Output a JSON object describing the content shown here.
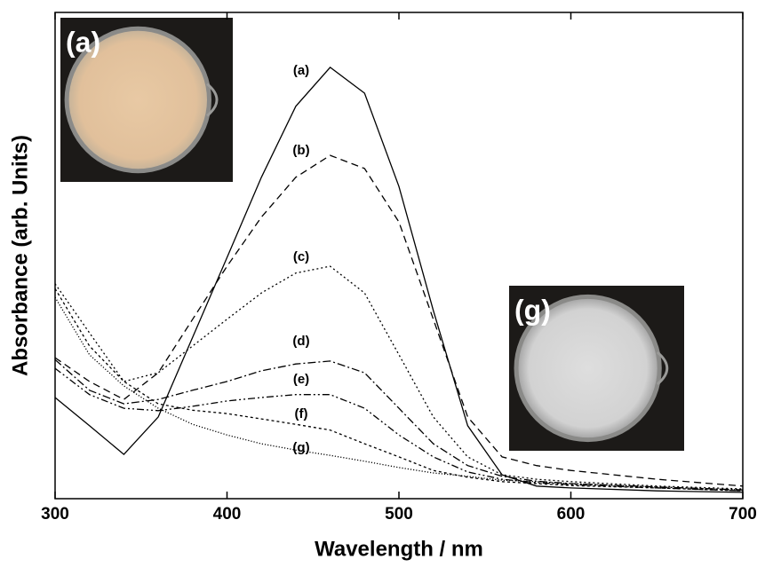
{
  "chart_data": {
    "type": "line",
    "xlabel": "Wavelength / nm",
    "ylabel": "Absorbance (arb. Units)",
    "xlim": [
      300,
      700
    ],
    "xticks": [
      300,
      400,
      500,
      600,
      700
    ],
    "ylim": [
      0,
      1
    ],
    "x": [
      300,
      320,
      340,
      360,
      380,
      400,
      420,
      440,
      460,
      480,
      500,
      520,
      540,
      560,
      580,
      600,
      650,
      700
    ],
    "series": [
      {
        "name": "(a)",
        "color": "#000000",
        "dash": "solid",
        "values": [
          0.208,
          0.15,
          0.091,
          0.168,
          0.332,
          0.496,
          0.661,
          0.807,
          0.887,
          0.834,
          0.642,
          0.387,
          0.15,
          0.049,
          0.026,
          0.022,
          0.016,
          0.013
        ]
      },
      {
        "name": "(b)",
        "color": "#000000",
        "dash": "dashed",
        "values": [
          0.29,
          0.241,
          0.204,
          0.259,
          0.369,
          0.478,
          0.579,
          0.661,
          0.706,
          0.679,
          0.569,
          0.369,
          0.168,
          0.086,
          0.068,
          0.058,
          0.04,
          0.026
        ]
      },
      {
        "name": "(c)",
        "color": "#000000",
        "dash": "dotted",
        "values": [
          0.442,
          0.341,
          0.241,
          0.259,
          0.314,
          0.369,
          0.423,
          0.464,
          0.478,
          0.423,
          0.296,
          0.168,
          0.086,
          0.049,
          0.04,
          0.035,
          0.026,
          0.02
        ]
      },
      {
        "name": "(d)",
        "color": "#000000",
        "dash": "dashdot",
        "values": [
          0.286,
          0.223,
          0.195,
          0.204,
          0.223,
          0.241,
          0.263,
          0.277,
          0.283,
          0.259,
          0.186,
          0.113,
          0.068,
          0.046,
          0.036,
          0.031,
          0.024,
          0.018
        ]
      },
      {
        "name": "(e)",
        "color": "#000000",
        "dash": "dashdotdot",
        "values": [
          0.268,
          0.214,
          0.186,
          0.181,
          0.19,
          0.201,
          0.208,
          0.214,
          0.214,
          0.186,
          0.131,
          0.086,
          0.055,
          0.04,
          0.033,
          0.029,
          0.022,
          0.016
        ]
      },
      {
        "name": "(f)",
        "color": "#000000",
        "dash": "shortdash",
        "values": [
          0.432,
          0.314,
          0.241,
          0.195,
          0.182,
          0.175,
          0.164,
          0.153,
          0.141,
          0.113,
          0.086,
          0.058,
          0.044,
          0.035,
          0.031,
          0.027,
          0.022,
          0.016
        ]
      },
      {
        "name": "(g)",
        "color": "#000000",
        "dash": "finedot",
        "values": [
          0.414,
          0.296,
          0.232,
          0.186,
          0.153,
          0.131,
          0.113,
          0.1,
          0.089,
          0.077,
          0.064,
          0.053,
          0.046,
          0.038,
          0.035,
          0.031,
          0.024,
          0.018
        ]
      }
    ],
    "insets": [
      {
        "label": "(a)"
      },
      {
        "label": "(g)"
      }
    ]
  }
}
